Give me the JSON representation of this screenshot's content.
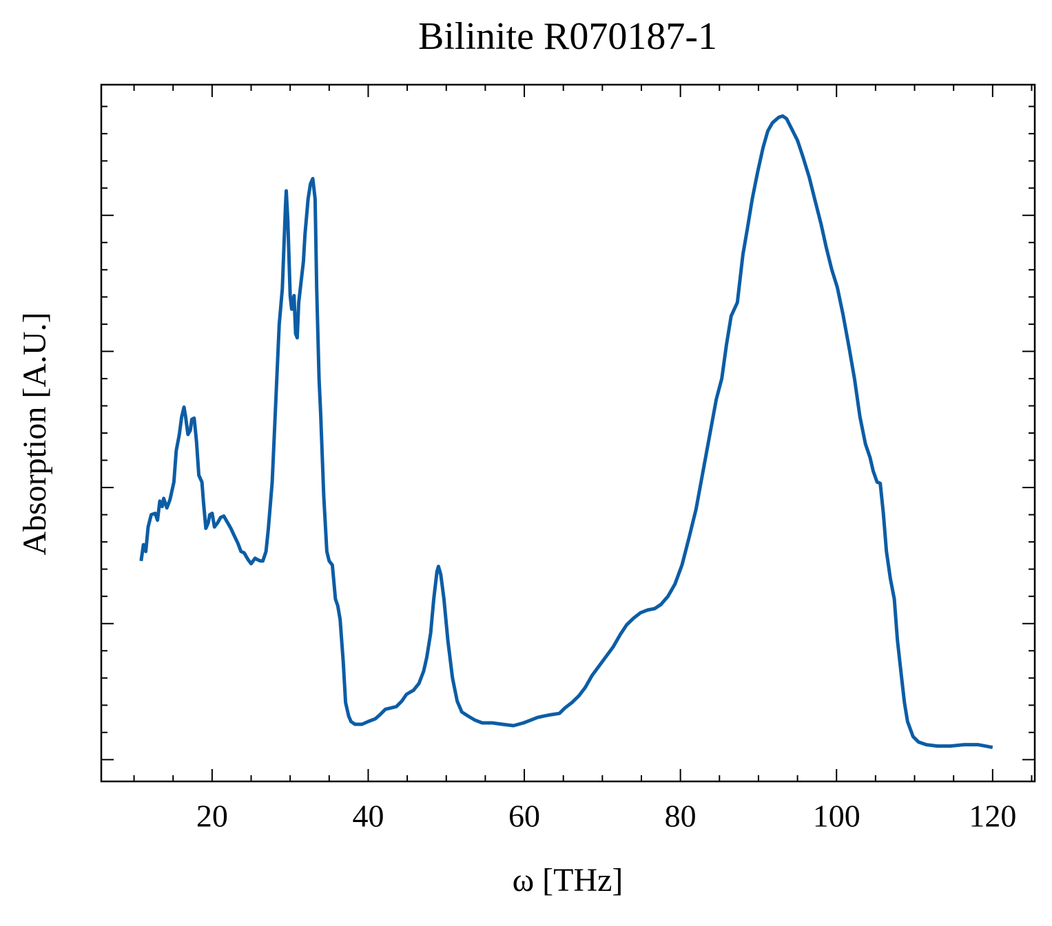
{
  "chart_data": {
    "type": "line",
    "title": "Bilinite R070187-1",
    "xlabel": "ω [THz]",
    "ylabel": "Absorption [A.U.]",
    "color": "#0c5da5",
    "xlim": [
      5.8,
      125.4
    ],
    "xticks": [
      20,
      40,
      60,
      80,
      100,
      120
    ],
    "xminorticks": [
      10,
      15,
      25,
      30,
      35,
      45,
      50,
      55,
      65,
      70,
      75,
      85,
      90,
      95,
      105,
      110,
      115,
      125
    ],
    "ylim": [
      -0.16,
      4.96
    ],
    "yticks": [
      0,
      1,
      2,
      3,
      4
    ],
    "yminorticks": [
      0.2,
      0.4,
      0.6,
      0.8,
      1.2,
      1.4,
      1.6,
      1.8,
      2.2,
      2.4,
      2.6,
      2.8,
      3.2,
      3.4,
      3.6,
      3.8,
      4.2,
      4.4,
      4.6,
      4.8
    ],
    "x": [
      10.9,
      11.2,
      11.5,
      11.8,
      12.2,
      12.7,
      13.0,
      13.3,
      13.6,
      13.8,
      14.2,
      14.6,
      15.1,
      15.4,
      15.8,
      16.1,
      16.4,
      16.6,
      16.9,
      17.2,
      17.4,
      17.7,
      18.0,
      18.3,
      18.7,
      18.9,
      19.2,
      19.5,
      19.7,
      20.0,
      20.3,
      20.7,
      21.1,
      21.5,
      21.9,
      22.4,
      22.8,
      23.3,
      23.7,
      24.1,
      24.6,
      25.0,
      25.5,
      25.8,
      26.2,
      26.5,
      26.9,
      27.2,
      27.7,
      28.1,
      28.6,
      29.0,
      29.4,
      29.5,
      29.7,
      30.0,
      30.2,
      30.5,
      30.7,
      30.9,
      31.1,
      31.4,
      31.7,
      31.9,
      32.3,
      32.6,
      32.9,
      33.2,
      33.4,
      33.7,
      33.9,
      34.3,
      34.7,
      35.0,
      35.4,
      35.8,
      36.1,
      36.4,
      36.8,
      37.1,
      37.5,
      37.8,
      38.3,
      39.2,
      40.0,
      40.9,
      41.5,
      42.2,
      42.9,
      43.6,
      44.3,
      44.9,
      45.8,
      46.5,
      47.1,
      47.5,
      48.0,
      48.4,
      48.8,
      49.0,
      49.3,
      49.7,
      50.2,
      50.8,
      51.4,
      52.0,
      52.8,
      53.7,
      54.6,
      55.9,
      57.2,
      58.6,
      59.9,
      60.8,
      61.7,
      62.5,
      63.4,
      64.5,
      65.2,
      66.1,
      67.0,
      67.8,
      68.7,
      69.6,
      70.5,
      71.4,
      72.3,
      73.1,
      74.0,
      74.9,
      75.8,
      76.7,
      77.5,
      78.4,
      79.3,
      80.2,
      81.1,
      82.0,
      82.8,
      83.7,
      84.6,
      85.3,
      85.9,
      86.5,
      87.3,
      88.0,
      88.6,
      89.2,
      89.9,
      90.6,
      91.2,
      91.8,
      92.6,
      93.1,
      93.6,
      94.3,
      95.0,
      95.7,
      96.5,
      97.2,
      98.0,
      98.7,
      99.4,
      100.1,
      100.8,
      101.6,
      102.3,
      103.0,
      103.7,
      104.3,
      104.7,
      105.2,
      105.6,
      106.0,
      106.4,
      106.9,
      107.4,
      107.8,
      108.3,
      108.7,
      109.1,
      109.8,
      110.5,
      111.5,
      112.9,
      114.6,
      116.4,
      118.1,
      120.0
    ],
    "values": [
      1.46,
      1.58,
      1.53,
      1.71,
      1.8,
      1.81,
      1.76,
      1.9,
      1.86,
      1.92,
      1.85,
      1.91,
      2.04,
      2.27,
      2.39,
      2.52,
      2.59,
      2.52,
      2.39,
      2.42,
      2.5,
      2.51,
      2.34,
      2.09,
      2.04,
      1.89,
      1.7,
      1.74,
      1.8,
      1.81,
      1.71,
      1.74,
      1.78,
      1.79,
      1.75,
      1.7,
      1.65,
      1.59,
      1.53,
      1.52,
      1.47,
      1.44,
      1.48,
      1.47,
      1.46,
      1.46,
      1.53,
      1.69,
      2.04,
      2.55,
      3.2,
      3.46,
      4.07,
      4.18,
      3.96,
      3.41,
      3.31,
      3.41,
      3.13,
      3.1,
      3.36,
      3.51,
      3.66,
      3.86,
      4.12,
      4.23,
      4.27,
      4.12,
      3.46,
      2.8,
      2.55,
      1.94,
      1.53,
      1.46,
      1.43,
      1.18,
      1.13,
      1.03,
      0.72,
      0.42,
      0.32,
      0.28,
      0.26,
      0.26,
      0.28,
      0.3,
      0.33,
      0.37,
      0.38,
      0.39,
      0.43,
      0.48,
      0.51,
      0.56,
      0.65,
      0.75,
      0.93,
      1.18,
      1.38,
      1.42,
      1.36,
      1.18,
      0.88,
      0.6,
      0.43,
      0.35,
      0.32,
      0.29,
      0.27,
      0.27,
      0.26,
      0.25,
      0.27,
      0.29,
      0.31,
      0.32,
      0.33,
      0.34,
      0.38,
      0.42,
      0.47,
      0.53,
      0.62,
      0.69,
      0.76,
      0.83,
      0.92,
      0.99,
      1.04,
      1.08,
      1.1,
      1.11,
      1.14,
      1.2,
      1.29,
      1.43,
      1.63,
      1.84,
      2.09,
      2.37,
      2.65,
      2.8,
      3.05,
      3.26,
      3.36,
      3.71,
      3.91,
      4.12,
      4.32,
      4.5,
      4.62,
      4.68,
      4.72,
      4.73,
      4.71,
      4.63,
      4.55,
      4.43,
      4.28,
      4.12,
      3.94,
      3.76,
      3.6,
      3.47,
      3.28,
      3.03,
      2.8,
      2.52,
      2.32,
      2.22,
      2.12,
      2.04,
      2.03,
      1.81,
      1.53,
      1.33,
      1.18,
      0.88,
      0.62,
      0.42,
      0.28,
      0.17,
      0.13,
      0.11,
      0.1,
      0.1,
      0.11,
      0.11,
      0.09
    ]
  }
}
